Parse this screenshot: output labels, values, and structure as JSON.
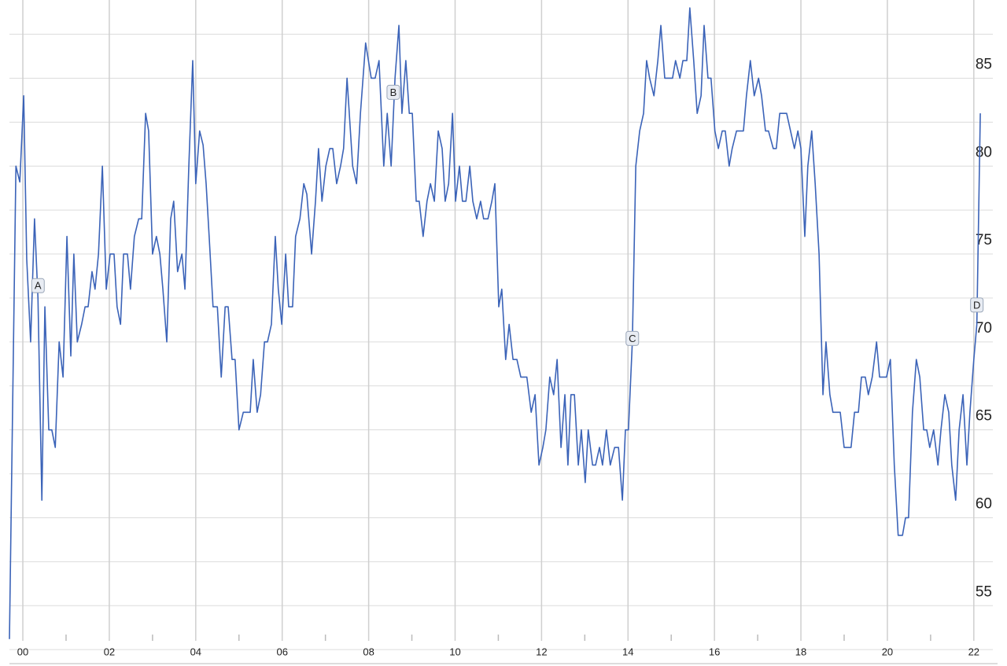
{
  "chart_data": {
    "type": "line",
    "x": [
      -0.31,
      -0.16,
      -0.07,
      0.02,
      0.09,
      0.18,
      0.27,
      0.35,
      0.44,
      0.51,
      0.6,
      0.67,
      0.75,
      0.84,
      0.93,
      1.02,
      1.11,
      1.18,
      1.26,
      1.36,
      1.44,
      1.51,
      1.6,
      1.67,
      1.75,
      1.84,
      1.93,
      2.02,
      2.11,
      2.18,
      2.26,
      2.33,
      2.42,
      2.49,
      2.58,
      2.68,
      2.75,
      2.84,
      2.91,
      3.0,
      3.09,
      3.17,
      3.24,
      3.33,
      3.42,
      3.49,
      3.58,
      3.68,
      3.75,
      3.84,
      3.93,
      4.0,
      4.09,
      4.17,
      4.24,
      4.31,
      4.4,
      4.5,
      4.59,
      4.68,
      4.75,
      4.84,
      4.91,
      5.0,
      5.1,
      5.26,
      5.33,
      5.42,
      5.5,
      5.59,
      5.66,
      5.75,
      5.84,
      5.91,
      5.99,
      6.08,
      6.15,
      6.24,
      6.31,
      6.41,
      6.5,
      6.57,
      6.68,
      6.77,
      6.84,
      6.92,
      7.01,
      7.1,
      7.17,
      7.26,
      7.35,
      7.42,
      7.5,
      7.63,
      7.72,
      7.81,
      7.93,
      8.06,
      8.15,
      8.24,
      8.35,
      8.43,
      8.52,
      8.61,
      8.7,
      8.77,
      8.86,
      8.94,
      9.01,
      9.1,
      9.17,
      9.26,
      9.35,
      9.43,
      9.52,
      9.61,
      9.7,
      9.77,
      9.85,
      9.94,
      10.01,
      10.1,
      10.17,
      10.25,
      10.34,
      10.41,
      10.5,
      10.59,
      10.66,
      10.76,
      10.85,
      10.92,
      11.01,
      11.08,
      11.17,
      11.25,
      11.34,
      11.43,
      11.52,
      11.59,
      11.66,
      11.76,
      11.85,
      11.94,
      12.03,
      12.1,
      12.19,
      12.28,
      12.36,
      12.45,
      12.54,
      12.61,
      12.68,
      12.76,
      12.85,
      12.92,
      13.01,
      13.08,
      13.18,
      13.25,
      13.34,
      13.41,
      13.5,
      13.59,
      13.69,
      13.78,
      13.87,
      13.94,
      14.01,
      14.1,
      14.18,
      14.27,
      14.36,
      14.43,
      14.5,
      14.6,
      14.69,
      14.76,
      14.85,
      14.94,
      15.03,
      15.1,
      15.2,
      15.27,
      15.36,
      15.43,
      15.52,
      15.6,
      15.69,
      15.76,
      15.85,
      15.92,
      16.01,
      16.09,
      16.18,
      16.25,
      16.34,
      16.41,
      16.51,
      16.58,
      16.67,
      16.74,
      16.83,
      16.92,
      17.02,
      17.09,
      17.18,
      17.25,
      17.36,
      17.43,
      17.51,
      17.6,
      17.67,
      17.76,
      17.85,
      17.93,
      18.0,
      18.09,
      18.16,
      18.25,
      18.33,
      18.42,
      18.51,
      18.58,
      18.67,
      18.74,
      18.84,
      18.91,
      19.0,
      19.07,
      19.16,
      19.24,
      19.33,
      19.4,
      19.49,
      19.56,
      19.65,
      19.75,
      19.82,
      19.91,
      19.98,
      20.07,
      20.16,
      20.25,
      20.35,
      20.42,
      20.49,
      20.58,
      20.67,
      20.75,
      20.84,
      20.91,
      20.98,
      21.07,
      21.17,
      21.24,
      21.33,
      21.42,
      21.49,
      21.58,
      21.66,
      21.75,
      21.84,
      21.91,
      22.0,
      22.07,
      22.15
    ],
    "series": [
      {
        "color": "#3b63b8",
        "values": [
          53.1,
          80,
          79.1,
          84,
          74.7,
          70,
          77,
          72.5,
          61,
          72,
          65,
          65,
          64,
          70,
          68,
          76,
          69.2,
          75,
          70,
          71,
          72,
          72,
          74,
          73,
          75,
          80,
          73,
          75,
          75,
          72,
          71,
          75,
          75,
          73,
          76,
          77,
          77,
          83,
          82,
          75,
          76,
          75,
          73,
          70,
          77,
          78,
          74,
          75,
          73,
          80,
          86,
          79,
          82,
          81.2,
          79,
          76,
          72,
          72,
          68,
          72,
          72,
          69,
          69,
          65,
          66,
          66,
          69,
          66,
          67,
          70,
          70,
          71,
          76,
          73,
          71,
          75,
          72,
          72,
          76,
          77,
          79,
          78.4,
          75,
          78,
          81,
          78,
          80,
          81,
          81,
          79,
          80,
          81,
          85,
          80,
          79,
          83,
          87,
          85,
          85,
          86,
          80,
          83,
          80,
          85,
          88,
          83,
          86,
          83,
          83,
          78,
          78,
          76,
          78,
          79,
          78,
          82,
          81,
          78,
          79,
          83,
          78,
          80,
          78,
          78,
          80,
          78,
          77,
          78,
          77,
          77,
          78,
          79,
          72,
          73,
          69,
          71,
          69,
          69,
          68,
          68,
          68,
          66,
          67,
          63,
          64,
          65,
          68,
          67,
          69,
          64,
          67,
          63,
          67,
          67,
          63,
          65,
          62,
          65,
          63,
          63,
          64,
          63,
          65,
          63,
          64,
          64,
          61,
          65,
          65,
          70,
          80,
          82,
          83,
          86,
          85,
          84,
          86,
          88,
          85,
          85,
          85,
          86,
          85,
          86,
          86,
          89,
          86,
          83,
          84,
          88,
          85,
          85,
          82,
          81,
          82,
          82,
          80,
          81,
          82,
          82,
          82,
          84,
          86,
          84,
          85,
          84,
          82,
          82,
          81,
          81,
          83,
          83,
          83,
          82,
          81,
          82,
          81,
          76,
          80,
          82,
          79,
          75,
          67,
          70,
          67,
          66,
          66,
          66,
          64,
          64,
          64,
          66,
          66,
          68,
          68,
          67,
          68,
          70,
          68,
          68,
          68,
          69,
          63,
          59,
          59,
          60,
          60,
          66,
          69,
          68,
          65,
          65,
          64,
          65,
          63,
          65,
          67,
          66,
          63,
          61,
          65,
          67,
          63,
          66,
          69,
          71,
          83
        ]
      }
    ],
    "annotations": [
      {
        "label": "A",
        "x": 0.35,
        "y": 73.2
      },
      {
        "label": "B",
        "x": 8.57,
        "y": 84.2
      },
      {
        "label": "C",
        "x": 14.1,
        "y": 70.2
      },
      {
        "label": "D",
        "x": 22.07,
        "y": 72.1
      }
    ],
    "xlim": [
      -0.31,
      22.44
    ],
    "ylim": [
      53,
      89
    ],
    "xticks": [
      {
        "value": 0,
        "label": "00"
      },
      {
        "value": 2,
        "label": "02"
      },
      {
        "value": 4,
        "label": "04"
      },
      {
        "value": 6,
        "label": "06"
      },
      {
        "value": 8,
        "label": "08"
      },
      10,
      12,
      14,
      16,
      18,
      20,
      22
    ],
    "xminor": [
      1,
      3,
      5,
      7,
      9,
      11,
      13,
      15,
      17,
      19,
      21
    ],
    "yticks": [
      55,
      60,
      65,
      70,
      75,
      80,
      85
    ],
    "yminor": [
      52.5,
      57.5,
      62.5,
      67.5,
      72.5,
      77.5,
      82.5,
      87.5
    ],
    "grid": true
  }
}
